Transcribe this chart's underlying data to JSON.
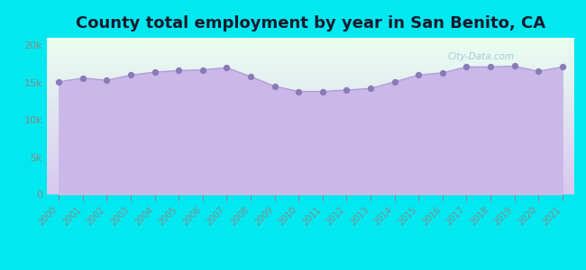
{
  "title": "County total employment by year in San Benito, CA",
  "years": [
    2000,
    2001,
    2002,
    2003,
    2004,
    2005,
    2006,
    2007,
    2008,
    2009,
    2010,
    2011,
    2012,
    2013,
    2014,
    2015,
    2016,
    2017,
    2018,
    2019,
    2020,
    2021
  ],
  "values": [
    15100,
    15600,
    15300,
    16000,
    16400,
    16600,
    16700,
    17000,
    15800,
    14500,
    13800,
    13800,
    14000,
    14200,
    15100,
    16000,
    16300,
    17100,
    17100,
    17200,
    16500,
    17100
  ],
  "line_color": "#b39ddb",
  "fill_color": "#c9b8e8",
  "fill_alpha": 1.0,
  "marker_color": "#8b7ab8",
  "marker_size": 18,
  "outer_background": "#00e8f0",
  "plot_bg_top": "#eafff0",
  "plot_bg_bottom": "#d8c8f0",
  "title_fontsize": 13,
  "title_color": "#1a1a2e",
  "ytick_labels": [
    "0",
    "5k",
    "10k",
    "15k",
    "20k"
  ],
  "ytick_values": [
    0,
    5000,
    10000,
    15000,
    20000
  ],
  "ylim": [
    0,
    21000
  ],
  "tick_color": "#888888",
  "watermark": "City-Data.com"
}
